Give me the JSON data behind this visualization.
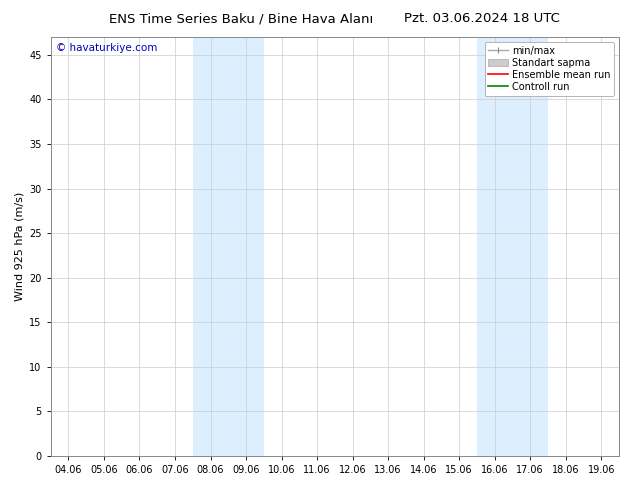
{
  "title_left": "ENS Time Series Baku / Bine Hava Alanı",
  "title_right": "Pzt. 03.06.2024 18 UTC",
  "ylabel": "Wind 925 hPa (m/s)",
  "watermark": "© havaturkiye.com",
  "watermark_color": "#0000bb",
  "xtick_labels": [
    "04.06",
    "05.06",
    "06.06",
    "07.06",
    "08.06",
    "09.06",
    "10.06",
    "11.06",
    "12.06",
    "13.06",
    "14.06",
    "15.06",
    "16.06",
    "17.06",
    "18.06",
    "19.06"
  ],
  "ylim": [
    0,
    47
  ],
  "ytick_values": [
    0,
    5,
    10,
    15,
    20,
    25,
    30,
    35,
    40,
    45
  ],
  "shade_color": "#ddeeff",
  "bg_color": "#ffffff",
  "plot_bg_color": "#ffffff",
  "grid_color": "#cccccc",
  "title_fontsize": 9.5,
  "ylabel_fontsize": 8,
  "tick_fontsize": 7,
  "watermark_fontsize": 7.5,
  "legend_fontsize": 7
}
